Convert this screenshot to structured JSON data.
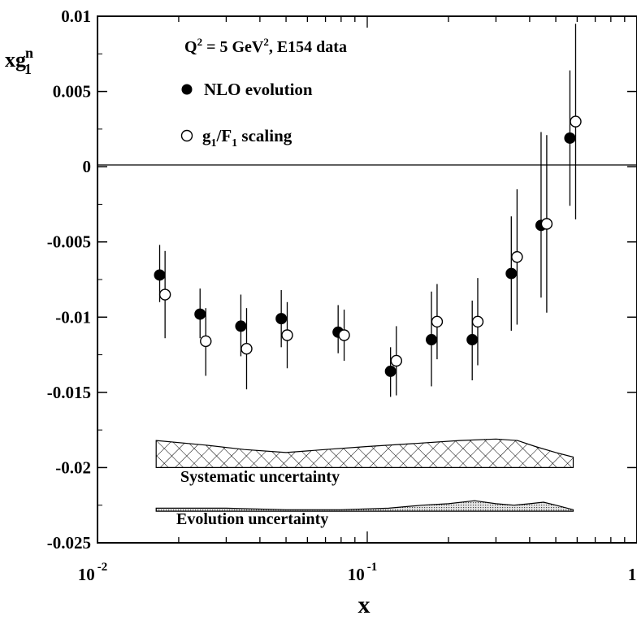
{
  "chart_data": {
    "type": "scatter",
    "title": "Q² = 5 GeV², E154 data",
    "xlabel": "x",
    "ylabel": "xg₁ⁿ",
    "xscale": "log",
    "xlim": [
      0.01,
      1
    ],
    "ylim": [
      -0.025,
      0.01
    ],
    "grid": false,
    "legend_position": "top-left",
    "x_tick_labels": [
      {
        "value": 0.01,
        "base": "10",
        "exp": "-2"
      },
      {
        "value": 0.1,
        "base": "10",
        "exp": "-1"
      },
      {
        "value": 1,
        "base": "1",
        "exp": ""
      }
    ],
    "y_ticks": [
      {
        "value": 0.01,
        "label": "0.01"
      },
      {
        "value": 0.005,
        "label": "0.005"
      },
      {
        "value": 0,
        "label": "0"
      },
      {
        "value": -0.005,
        "label": "-0.005"
      },
      {
        "value": -0.01,
        "label": "-0.01"
      },
      {
        "value": -0.015,
        "label": "-0.015"
      },
      {
        "value": -0.02,
        "label": "-0.02"
      },
      {
        "value": -0.025,
        "label": "-0.025"
      }
    ],
    "series": [
      {
        "name": "NLO evolution",
        "marker": "filled-circle",
        "points": [
          {
            "x": 0.017,
            "y": -0.0072,
            "err_lo": 0.0018,
            "err_hi": 0.002
          },
          {
            "x": 0.024,
            "y": -0.0098,
            "err_lo": 0.0016,
            "err_hi": 0.0017
          },
          {
            "x": 0.034,
            "y": -0.0106,
            "err_lo": 0.002,
            "err_hi": 0.0021
          },
          {
            "x": 0.048,
            "y": -0.0101,
            "err_lo": 0.0019,
            "err_hi": 0.0019
          },
          {
            "x": 0.078,
            "y": -0.011,
            "err_lo": 0.0014,
            "err_hi": 0.0018
          },
          {
            "x": 0.122,
            "y": -0.0136,
            "err_lo": 0.0017,
            "err_hi": 0.0016
          },
          {
            "x": 0.173,
            "y": -0.0115,
            "err_lo": 0.0031,
            "err_hi": 0.0032
          },
          {
            "x": 0.245,
            "y": -0.0115,
            "err_lo": 0.0027,
            "err_hi": 0.0026
          },
          {
            "x": 0.342,
            "y": -0.0071,
            "err_lo": 0.0038,
            "err_hi": 0.0038
          },
          {
            "x": 0.441,
            "y": -0.0039,
            "err_lo": 0.0048,
            "err_hi": 0.0062
          },
          {
            "x": 0.564,
            "y": 0.0019,
            "err_lo": 0.0045,
            "err_hi": 0.0045
          }
        ]
      },
      {
        "name": "g₁/F₁ scaling",
        "marker": "open-circle",
        "points": [
          {
            "x": 0.0178,
            "y": -0.0085,
            "err_lo": 0.0029,
            "err_hi": 0.0029
          },
          {
            "x": 0.0252,
            "y": -0.0116,
            "err_lo": 0.0023,
            "err_hi": 0.0022
          },
          {
            "x": 0.0357,
            "y": -0.0121,
            "err_lo": 0.0027,
            "err_hi": 0.0027
          },
          {
            "x": 0.0505,
            "y": -0.0112,
            "err_lo": 0.0022,
            "err_hi": 0.0022
          },
          {
            "x": 0.0821,
            "y": -0.0112,
            "err_lo": 0.0017,
            "err_hi": 0.0017
          },
          {
            "x": 0.1282,
            "y": -0.0129,
            "err_lo": 0.0023,
            "err_hi": 0.0023
          },
          {
            "x": 0.1815,
            "y": -0.0103,
            "err_lo": 0.0025,
            "err_hi": 0.0025
          },
          {
            "x": 0.2568,
            "y": -0.0103,
            "err_lo": 0.0029,
            "err_hi": 0.0029
          },
          {
            "x": 0.3592,
            "y": -0.006,
            "err_lo": 0.0045,
            "err_hi": 0.0045
          },
          {
            "x": 0.4628,
            "y": -0.0038,
            "err_lo": 0.0059,
            "err_hi": 0.0059
          },
          {
            "x": 0.5923,
            "y": 0.003,
            "err_lo": 0.0065,
            "err_hi": 0.0065
          }
        ]
      }
    ],
    "bands": [
      {
        "label": "Systematic uncertainty",
        "pattern": "crosshatch",
        "x": [
          0.0165,
          0.025,
          0.035,
          0.05,
          0.07,
          0.1,
          0.15,
          0.22,
          0.3,
          0.36,
          0.42,
          0.5,
          0.58
        ],
        "upper": [
          -0.0182,
          -0.0185,
          -0.0188,
          -0.019,
          -0.0188,
          -0.0186,
          -0.0184,
          -0.0182,
          -0.0181,
          -0.0182,
          -0.0186,
          -0.019,
          -0.0193
        ],
        "lower": [
          -0.02,
          -0.02,
          -0.02,
          -0.02,
          -0.02,
          -0.02,
          -0.02,
          -0.02,
          -0.02,
          -0.02,
          -0.02,
          -0.02,
          -0.02
        ]
      },
      {
        "label": "Evolution uncertainty",
        "pattern": "dotted",
        "x": [
          0.0165,
          0.03,
          0.05,
          0.08,
          0.12,
          0.16,
          0.2,
          0.25,
          0.3,
          0.35,
          0.4,
          0.45,
          0.5,
          0.58
        ],
        "upper": [
          -0.0227,
          -0.0227,
          -0.0228,
          -0.0228,
          -0.0227,
          -0.0225,
          -0.0224,
          -0.0222,
          -0.0224,
          -0.0225,
          -0.0224,
          -0.0223,
          -0.0225,
          -0.0228
        ],
        "lower": [
          -0.0229,
          -0.0229,
          -0.0229,
          -0.0229,
          -0.0229,
          -0.0229,
          -0.0229,
          -0.0229,
          -0.0229,
          -0.0229,
          -0.0229,
          -0.0229,
          -0.0229,
          -0.0229
        ]
      }
    ]
  }
}
